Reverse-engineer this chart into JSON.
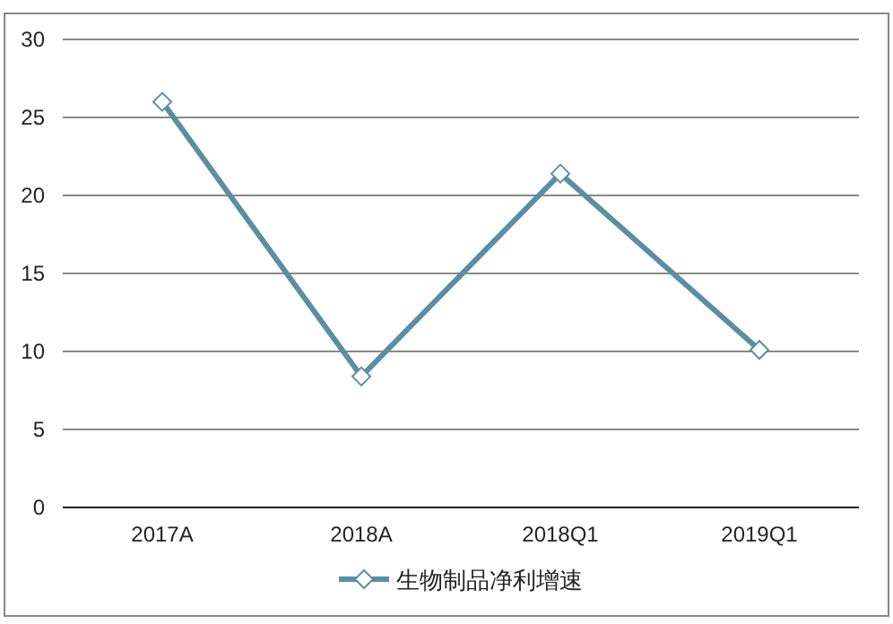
{
  "chart_data": {
    "type": "line",
    "categories": [
      "2017A",
      "2018A",
      "2018Q1",
      "2019Q1"
    ],
    "series": [
      {
        "name": "生物制品净利增速",
        "color": "#5b8fa0",
        "values": [
          26.0,
          8.4,
          21.4,
          10.1
        ]
      }
    ],
    "ylim": [
      0,
      30
    ],
    "yticks": [
      0,
      5,
      10,
      15,
      20,
      25,
      30
    ],
    "grid": "y",
    "legend": "bottom",
    "marker": "diamond"
  }
}
